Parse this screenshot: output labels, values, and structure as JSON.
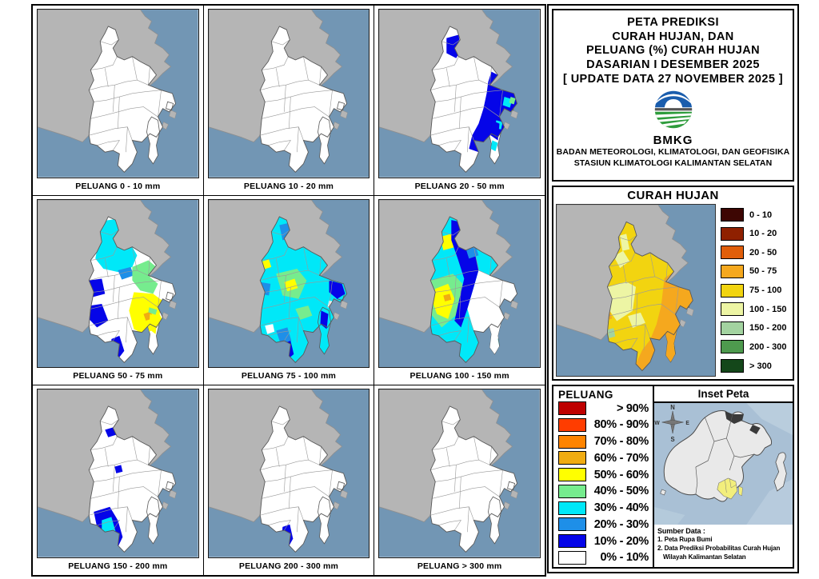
{
  "maps": {
    "panels": [
      {
        "id": "m1",
        "caption": "PELUANG 0 - 10 mm"
      },
      {
        "id": "m2",
        "caption": "PELUANG 10 - 20 mm"
      },
      {
        "id": "m3",
        "caption": "PELUANG 20 - 50 mm"
      },
      {
        "id": "m4",
        "caption": "PELUANG 50 - 75 mm"
      },
      {
        "id": "m5",
        "caption": "PELUANG 75 - 100 mm"
      },
      {
        "id": "m6",
        "caption": "PELUANG 100 - 150 mm"
      },
      {
        "id": "m7",
        "caption": "PELUANG 150 - 200 mm"
      },
      {
        "id": "m8",
        "caption": "PELUANG 200 - 300 mm"
      },
      {
        "id": "m9",
        "caption": "PELUANG > 300 mm"
      }
    ]
  },
  "title_block": {
    "lines": [
      "PETA PREDIKSI",
      "CURAH HUJAN, DAN",
      "PELUANG (%) CURAH HUJAN",
      "DASARIAN I DESEMBER 2025",
      "[ UPDATE DATA 27 NOVEMBER 2025 ]"
    ],
    "logo_text": "BMKG",
    "org_line1": "BADAN METEOROLOGI, KLIMATOLOGI, DAN GEOFISIKA",
    "org_line2": "STASIUN KLIMATOLOGI KALIMANTAN SELATAN"
  },
  "curah_hujan": {
    "title": "CURAH HUJAN",
    "legend": [
      {
        "key": "c1",
        "label": "0 - 10",
        "color": "#3D0603"
      },
      {
        "key": "c2",
        "label": "10 - 20",
        "color": "#8F2000"
      },
      {
        "key": "c3",
        "label": "20 - 50",
        "color": "#E05E0A"
      },
      {
        "key": "c4",
        "label": "50 - 75",
        "color": "#F5A81E"
      },
      {
        "key": "c5",
        "label": "75 - 100",
        "color": "#F2D410"
      },
      {
        "key": "c6",
        "label": "100 - 150",
        "color": "#EDF5A4"
      },
      {
        "key": "c7",
        "label": "150 - 200",
        "color": "#A3D3A0"
      },
      {
        "key": "c8",
        "label": "200 - 300",
        "color": "#4E9A4E"
      },
      {
        "key": "c9",
        "label": "> 300",
        "color": "#14471A"
      }
    ]
  },
  "peluang": {
    "title": "PELUANG",
    "legend": [
      {
        "key": "p90",
        "label": "> 90%",
        "color": "#BE0000"
      },
      {
        "key": "p80",
        "label": "80% - 90%",
        "color": "#FF3D00"
      },
      {
        "key": "p70",
        "label": "70% - 80%",
        "color": "#FF8400"
      },
      {
        "key": "p60",
        "label": "60% - 70%",
        "color": "#F0AC12"
      },
      {
        "key": "p50",
        "label": "50% - 60%",
        "color": "#FFFF00"
      },
      {
        "key": "p40",
        "label": "40% - 50%",
        "color": "#76EC8E"
      },
      {
        "key": "p30",
        "label": "30% - 40%",
        "color": "#00E8F8"
      },
      {
        "key": "p20",
        "label": "20% - 30%",
        "color": "#1E8FE8"
      },
      {
        "key": "p10",
        "label": "10% - 20%",
        "color": "#0505E8"
      },
      {
        "key": "p0",
        "label": "0% - 10%",
        "color": "#FFFFFF"
      }
    ]
  },
  "inset": {
    "title": "Inset Peta",
    "compass": {
      "n": "N",
      "w": "W",
      "e": "E",
      "s": "S"
    },
    "sumber_heading": "Sumber Data :",
    "sumber_lines": [
      "1. Peta Rupa Bumi",
      "2. Data Prediksi Probabilitas Curah Hujan",
      "Wilayah Kalimantan Selatan"
    ]
  },
  "colors": {
    "sea": "#7296B4",
    "land_outside": "#B5B5B5",
    "land_outline": "#8F8F8F",
    "province_fill": "#FFFFFF",
    "province_outline": "#5A5A5A",
    "district_line": "#9A9A9A",
    "inset_sea": "#A9C0D5",
    "inset_sea_light": "#BDD0DF",
    "inset_land": "#E9E9E9",
    "inset_dark_patch": "#3A3A3A",
    "inset_highlight": "#F2EE7C",
    "logo_blue": "#1A5DAD",
    "logo_green": "#2E9C3C"
  }
}
